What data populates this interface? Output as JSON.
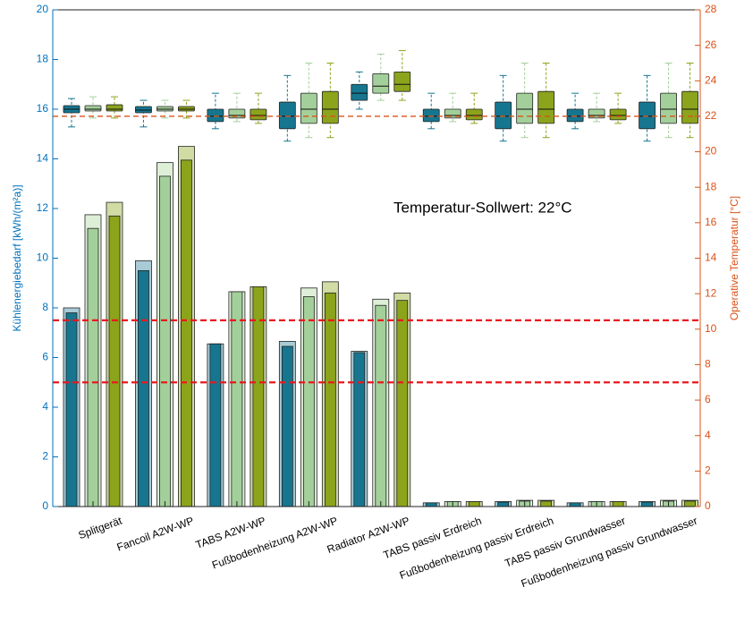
{
  "chart_data": {
    "type": "bar-box",
    "categories": [
      "Splitgerät",
      "Fancoil A2W-WP",
      "TABS A2W-WP",
      "Fußbodenheizung A2W-WP",
      "Radiator A2W-WP",
      "TABS passiv Erdreich",
      "Fußbodenheizung passiv Erdreich",
      "TABS passiv Grundwasser",
      "Fußbodenheizung passiv Grundwasser"
    ],
    "ylabel": "Kühlenergiebedarf [kWh/(m²a)]",
    "y2label": "Operative Temperatur [°C]",
    "annotation": "Temperatur-Sollwert: 22°C",
    "ylim": [
      0,
      20
    ],
    "yticks": [
      0,
      2,
      4,
      6,
      8,
      10,
      12,
      14,
      16,
      18,
      20
    ],
    "y2lim": [
      0,
      28
    ],
    "y2ticks": [
      0,
      2,
      4,
      6,
      8,
      10,
      12,
      14,
      16,
      18,
      20,
      22,
      24,
      26,
      28
    ],
    "y_color": "#0072bd",
    "y2_color": "#d95319",
    "hlines": [
      {
        "value": 7.5,
        "color": "#e8191f"
      },
      {
        "value": 5,
        "color": "#e8191f"
      }
    ],
    "y2_hline": {
      "value": 22,
      "color": "#d95319"
    },
    "series": [
      {
        "color": "#17768f",
        "light_color": "#a9cbd6",
        "values": [
          7.8,
          9.5,
          6.55,
          6.45,
          6.2,
          0.15,
          0.18,
          0.15,
          0.18
        ],
        "totals": [
          8.0,
          9.9,
          6.55,
          6.65,
          6.25,
          0.15,
          0.2,
          0.15,
          0.2
        ],
        "boxes": [
          [
            21.4,
            22.2,
            22.4,
            22.6,
            23.0
          ],
          [
            21.4,
            22.2,
            22.35,
            22.55,
            22.9
          ],
          [
            21.3,
            21.7,
            22.0,
            22.4,
            23.3
          ],
          [
            20.6,
            21.3,
            22.0,
            22.8,
            24.3
          ],
          [
            22.4,
            22.9,
            23.3,
            23.8,
            24.5
          ],
          [
            21.3,
            21.7,
            22.0,
            22.4,
            23.3
          ],
          [
            20.6,
            21.3,
            22.0,
            22.8,
            24.3
          ],
          [
            21.3,
            21.7,
            22.0,
            22.4,
            23.3
          ],
          [
            20.6,
            21.3,
            22.0,
            22.8,
            24.3
          ]
        ]
      },
      {
        "color": "#a3d09a",
        "light_color": "#deefd8",
        "values": [
          11.2,
          13.3,
          8.65,
          8.45,
          8.1,
          0.2,
          0.22,
          0.2,
          0.22
        ],
        "totals": [
          11.75,
          13.85,
          8.65,
          8.8,
          8.35,
          0.2,
          0.25,
          0.2,
          0.25
        ],
        "boxes": [
          [
            21.9,
            22.3,
            22.4,
            22.6,
            23.1
          ],
          [
            21.9,
            22.3,
            22.4,
            22.55,
            22.9
          ],
          [
            21.7,
            21.9,
            22.05,
            22.4,
            23.3
          ],
          [
            20.8,
            21.6,
            22.4,
            23.3,
            25.0
          ],
          [
            22.9,
            23.3,
            23.7,
            24.4,
            25.5
          ],
          [
            21.7,
            21.9,
            22.05,
            22.4,
            23.3
          ],
          [
            20.8,
            21.6,
            22.4,
            23.3,
            25.0
          ],
          [
            21.7,
            21.9,
            22.05,
            22.4,
            23.3
          ],
          [
            20.8,
            21.6,
            22.4,
            23.3,
            25.0
          ]
        ]
      },
      {
        "color": "#8ca41c",
        "light_color": "#d0dca4",
        "values": [
          11.7,
          13.95,
          8.85,
          8.6,
          8.3,
          0.2,
          0.22,
          0.2,
          0.22
        ],
        "totals": [
          12.25,
          14.5,
          8.85,
          9.05,
          8.6,
          0.2,
          0.25,
          0.2,
          0.25
        ],
        "boxes": [
          [
            21.9,
            22.3,
            22.4,
            22.65,
            23.1
          ],
          [
            21.9,
            22.3,
            22.4,
            22.55,
            22.9
          ],
          [
            21.6,
            21.8,
            22.05,
            22.4,
            23.3
          ],
          [
            20.8,
            21.6,
            22.4,
            23.4,
            25.0
          ],
          [
            22.9,
            23.4,
            23.8,
            24.5,
            25.7
          ],
          [
            21.6,
            21.8,
            22.05,
            22.4,
            23.3
          ],
          [
            20.8,
            21.6,
            22.4,
            23.4,
            25.0
          ],
          [
            21.6,
            21.8,
            22.05,
            22.4,
            23.3
          ],
          [
            20.8,
            21.6,
            22.4,
            23.4,
            25.0
          ]
        ]
      }
    ]
  }
}
